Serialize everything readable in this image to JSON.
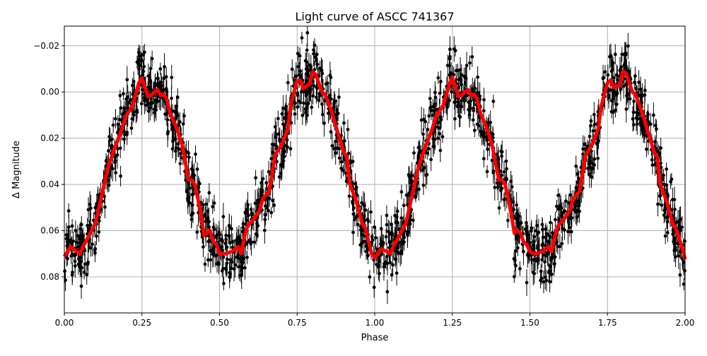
{
  "chart_data": {
    "type": "scatter",
    "title": "Light curve of ASCC 741367",
    "xlabel": "Phase",
    "ylabel": "Δ Magnitude",
    "xlim": [
      0,
      2
    ],
    "ylim": [
      0.0956,
      -0.0285
    ],
    "y_inverted": true,
    "grid": true,
    "xticks": [
      "0.00",
      "0.25",
      "0.50",
      "0.75",
      "1.00",
      "1.25",
      "1.50",
      "1.75",
      "2.00"
    ],
    "xtick_values": [
      0,
      0.25,
      0.5,
      0.75,
      1,
      1.25,
      1.5,
      1.75,
      2
    ],
    "yticks": [
      "−0.02",
      "0.00",
      "0.02",
      "0.04",
      "0.06",
      "0.08"
    ],
    "ytick_values": [
      -0.02,
      0,
      0.02,
      0.04,
      0.06,
      0.08
    ],
    "colors": {
      "points": "#000000",
      "model": "#ff0000",
      "grid": "#b0b0b0"
    },
    "series": [
      {
        "name": "observations",
        "kind": "errorbar-scatter",
        "typical_error": 0.004,
        "scatter_sigma": 0.0065
      },
      {
        "name": "binned model",
        "kind": "line",
        "x": [
          0,
          0.02,
          0.04,
          0.05,
          0.06,
          0.08,
          0.1,
          0.12,
          0.14,
          0.16,
          0.18,
          0.2,
          0.22,
          0.24,
          0.25,
          0.26,
          0.27,
          0.28,
          0.29,
          0.3,
          0.31,
          0.32,
          0.33,
          0.34,
          0.36,
          0.38,
          0.4,
          0.41,
          0.42,
          0.43,
          0.44,
          0.45,
          0.46,
          0.47,
          0.48,
          0.49,
          0.5,
          0.51,
          0.52,
          0.54,
          0.56,
          0.57,
          0.58,
          0.59,
          0.61,
          0.63,
          0.64,
          0.66,
          0.68,
          0.7,
          0.72,
          0.73,
          0.75,
          0.76,
          0.77,
          0.79,
          0.8,
          0.81,
          0.83,
          0.84,
          0.86,
          0.88,
          0.9,
          0.91,
          0.92,
          0.94,
          0.96,
          0.97,
          0.99,
          1.0,
          1.02,
          1.04,
          1.05,
          1.06,
          1.08,
          1.1,
          1.12,
          1.14,
          1.16,
          1.18,
          1.2,
          1.22,
          1.24,
          1.25,
          1.26,
          1.27,
          1.28,
          1.29,
          1.3,
          1.31,
          1.32,
          1.33,
          1.34,
          1.36,
          1.38,
          1.4,
          1.41,
          1.42,
          1.43,
          1.44,
          1.45,
          1.46,
          1.47,
          1.48,
          1.49,
          1.5,
          1.51,
          1.52,
          1.54,
          1.56,
          1.57,
          1.58,
          1.59,
          1.61,
          1.63,
          1.64,
          1.66,
          1.68,
          1.7,
          1.72,
          1.73,
          1.75,
          1.76,
          1.77,
          1.79,
          1.8,
          1.81,
          1.83,
          1.84,
          1.86,
          1.88,
          1.9,
          1.91,
          1.92,
          1.94,
          1.96,
          1.97,
          1.99,
          2.0
        ],
        "y": [
          0.0712,
          0.067,
          0.069,
          0.07,
          0.067,
          0.062,
          0.057,
          0.045,
          0.033,
          0.025,
          0.018,
          0.01,
          0.006,
          -0.004,
          -0.006,
          -0.002,
          0.002,
          0.0015,
          0.0,
          -0.001,
          0.0015,
          0.001,
          0.003,
          0.009,
          0.015,
          0.023,
          0.038,
          0.038,
          0.04,
          0.046,
          0.053,
          0.062,
          0.061,
          0.06,
          0.065,
          0.0657,
          0.07,
          0.07,
          0.07,
          0.069,
          0.067,
          0.07,
          0.063,
          0.058,
          0.055,
          0.051,
          0.046,
          0.043,
          0.027,
          0.023,
          0.016,
          0.005,
          -0.005,
          -0.005,
          -0.0015,
          -0.0035,
          -0.0087,
          -0.0076,
          0.0,
          0.001,
          0.008,
          0.017,
          0.026,
          0.028,
          0.04,
          0.047,
          0.057,
          0.059,
          0.07,
          0.0718,
          0.068,
          0.069,
          0.07,
          0.067,
          0.062,
          0.057,
          0.045,
          0.033,
          0.025,
          0.018,
          0.01,
          0.006,
          -0.003,
          -0.0065,
          -0.002,
          0.002,
          0.0015,
          0.0,
          -0.001,
          0.0015,
          0.001,
          0.003,
          0.009,
          0.015,
          0.024,
          0.038,
          0.038,
          0.04,
          0.046,
          0.053,
          0.061,
          0.06,
          0.061,
          0.065,
          0.066,
          0.069,
          0.07,
          0.07,
          0.069,
          0.067,
          0.069,
          0.063,
          0.058,
          0.055,
          0.051,
          0.046,
          0.043,
          0.027,
          0.023,
          0.016,
          0.006,
          -0.004,
          -0.005,
          -0.002,
          -0.003,
          -0.009,
          -0.008,
          0.0,
          0.001,
          0.008,
          0.017,
          0.026,
          0.028,
          0.04,
          0.047,
          0.057,
          0.059,
          0.067,
          0.0725
        ]
      }
    ]
  }
}
